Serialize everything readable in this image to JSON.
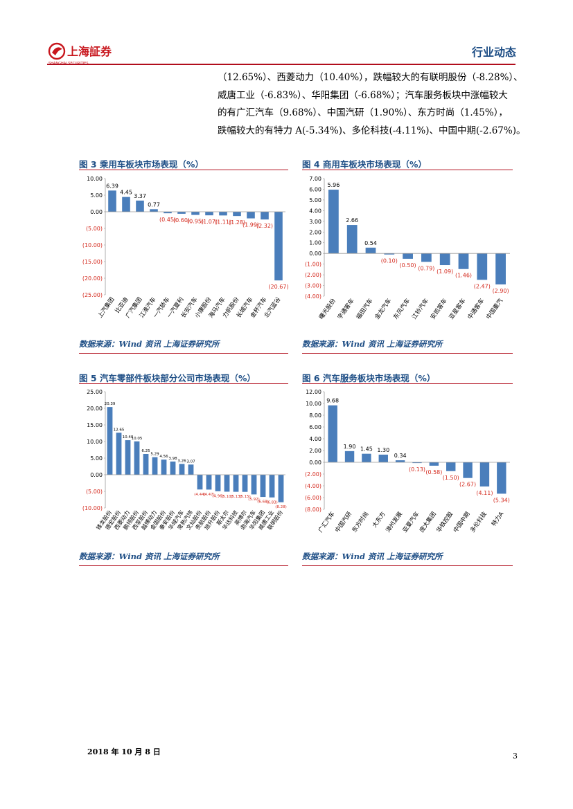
{
  "header": {
    "logo_text": "上海証券",
    "logo_sub": "SHANGHAI SECURITIES",
    "section_title": "行业动态"
  },
  "body_lines": [
    "（12.65%）、西菱动力（10.40%），跌幅较大的有联明股份（-8.28%）、",
    "威唐工业（-6.83%）、华阳集团（-6.68%）；汽车服务板块中涨幅较大",
    "的有广汇汽车（9.68%）、中国汽研（1.90%）、东方时尚（1.45%），",
    "跌幅较大的有特力 A(-5.34%)、多伦科技(-4.11%)、中国中期(-2.67%)。"
  ],
  "colors": {
    "bar": "#4a7ebb",
    "neg_label": "#d42a1e",
    "title": "#1f4f86",
    "rule": "#b10d1c"
  },
  "figures": [
    {
      "id": "fig3",
      "title": "图 3 乘用车板块市场表现（%）",
      "source": "数据来源：Wind 资讯  上海证券研究所",
      "chart_data": {
        "type": "bar",
        "categories": [
          "上汽集团",
          "比亚迪",
          "广汽集团",
          "江淮汽车",
          "一汽轿车",
          "一汽夏利",
          "长安汽车",
          "小康股份",
          "海马汽车",
          "力帆股份",
          "长城汽车",
          "金杯汽车",
          "北汽蓝谷"
        ],
        "values": [
          6.39,
          4.45,
          3.37,
          0.77,
          -0.45,
          -0.6,
          -0.95,
          -1.07,
          -1.11,
          -1.28,
          -1.99,
          -2.32,
          -20.67
        ],
        "labels": [
          "6.39",
          "4.45",
          "3.37",
          "0.77",
          "(0.45)",
          "(0.60)",
          "(0.95)",
          "(1.07)",
          "(1.11)",
          "(1.28)",
          "(1.99)",
          "(2.32)",
          "(20.67)"
        ],
        "ylim": [
          -25,
          10
        ],
        "yticks": [
          10,
          5,
          0,
          -5,
          -10,
          -15,
          -20,
          -25
        ],
        "ytick_labels": [
          "10.00",
          "5.00",
          "0.00",
          "(5.00)",
          "(10.00)",
          "(15.00)",
          "(20.00)",
          "(25.00)"
        ],
        "xlabel": "",
        "ylabel": "",
        "title": ""
      }
    },
    {
      "id": "fig4",
      "title": "图 4 商用车板块市场表现（%）",
      "source": "数据来源：Wind 资讯  上海证券研究所",
      "chart_data": {
        "type": "bar",
        "categories": [
          "曙光股份",
          "宇通客车",
          "福田汽车",
          "金龙汽车",
          "东风汽车",
          "江铃汽车",
          "安凯客车",
          "亚星客车",
          "中通客车",
          "中国重汽"
        ],
        "values": [
          5.96,
          2.66,
          0.54,
          -0.1,
          -0.5,
          -0.79,
          -1.09,
          -1.46,
          -2.47,
          -2.9
        ],
        "labels": [
          "5.96",
          "2.66",
          "0.54",
          "(0.10)",
          "(0.50)",
          "(0.79)",
          "(1.09)",
          "(1.46)",
          "(2.47)",
          "(2.90)"
        ],
        "ylim": [
          -4,
          7
        ],
        "yticks": [
          7,
          6,
          5,
          4,
          3,
          2,
          1,
          0,
          -1,
          -2,
          -3,
          -4
        ],
        "ytick_labels": [
          "7.00",
          "6.00",
          "5.00",
          "4.00",
          "3.00",
          "2.00",
          "1.00",
          "0.00",
          "(1.00)",
          "(2.00)",
          "(3.00)",
          "(4.00)"
        ],
        "xlabel": "",
        "ylabel": "",
        "title": ""
      }
    },
    {
      "id": "fig5",
      "title": "图 5 汽车零部件板块部分公司市场表现（%）",
      "source": "数据来源：Wind 资讯  上海证券研究所",
      "chart_data": {
        "type": "bar",
        "categories": [
          "锋龙股份",
          "德宏股份",
          "西菱动力",
          "鹏翎股份",
          "西泵股份",
          "越博动力",
          "金固股份",
          "秦安股份",
          "华域汽车",
          "常熟汽饰",
          "文灿股份",
          "贵航股份",
          "旭升股份",
          "斯太尔",
          "华达科技",
          "英博尔",
          "渤海汽车",
          "华阳集团",
          "威唐工业",
          "联明股份"
        ],
        "values": [
          20.39,
          12.65,
          10.4,
          10.05,
          6.25,
          5.29,
          4.56,
          3.98,
          3.26,
          3.07,
          -4.44,
          -4.47,
          -4.96,
          -5.1,
          -5.13,
          -5.15,
          -5.92,
          -6.68,
          -6.83,
          -8.28
        ],
        "labels": [
          "20.39",
          "12.65",
          "10.40",
          "10.05",
          "6.25",
          "5.29",
          "4.56",
          "3.98",
          "3.26",
          "3.07",
          "(4.44)",
          "(4.47)",
          "(4.96)",
          "(5.10)",
          "(5.13)",
          "(5.15)",
          "(5.92)",
          "(6.68)",
          "(6.83)",
          "(8.28)"
        ],
        "ylim": [
          -10,
          25
        ],
        "yticks": [
          25,
          20,
          15,
          10,
          5,
          0,
          -5,
          -10
        ],
        "ytick_labels": [
          "25.00",
          "20.00",
          "15.00",
          "10.00",
          "5.00",
          "0.00",
          "(5.00)",
          "(10.00)"
        ],
        "xlabel": "",
        "ylabel": "",
        "title": ""
      }
    },
    {
      "id": "fig6",
      "title": "图 6 汽车服务板块市场表现（%）",
      "source": "数据来源：Wind 资讯  上海证券研究所",
      "chart_data": {
        "type": "bar",
        "categories": [
          "广汇汽车",
          "中国汽研",
          "东方时尚",
          "大东方",
          "漳州发展",
          "亚夏汽车",
          "庞大集团",
          "华铁控股",
          "中国中期",
          "多伦科技",
          "特力A"
        ],
        "values": [
          9.68,
          1.9,
          1.45,
          1.3,
          0.34,
          -0.13,
          -0.58,
          -1.5,
          -2.67,
          -4.11,
          -5.34
        ],
        "labels": [
          "9.68",
          "1.90",
          "1.45",
          "1.30",
          "0.34",
          "(0.13)",
          "(0.58)",
          "(1.50)",
          "(2.67)",
          "(4.11)",
          "(5.34)"
        ],
        "ylim": [
          -8,
          12
        ],
        "yticks": [
          12,
          10,
          8,
          6,
          4,
          2,
          0,
          -2,
          -4,
          -6,
          -8
        ],
        "ytick_labels": [
          "12.00",
          "10.00",
          "8.00",
          "6.00",
          "4.00",
          "2.00",
          "0.00",
          "(2.00)",
          "(4.00)",
          "(6.00)",
          "(8.00)"
        ],
        "xlabel": "",
        "ylabel": "",
        "title": ""
      }
    }
  ],
  "footer": {
    "date": "2018 年 10 月 8 日",
    "page": "3"
  }
}
